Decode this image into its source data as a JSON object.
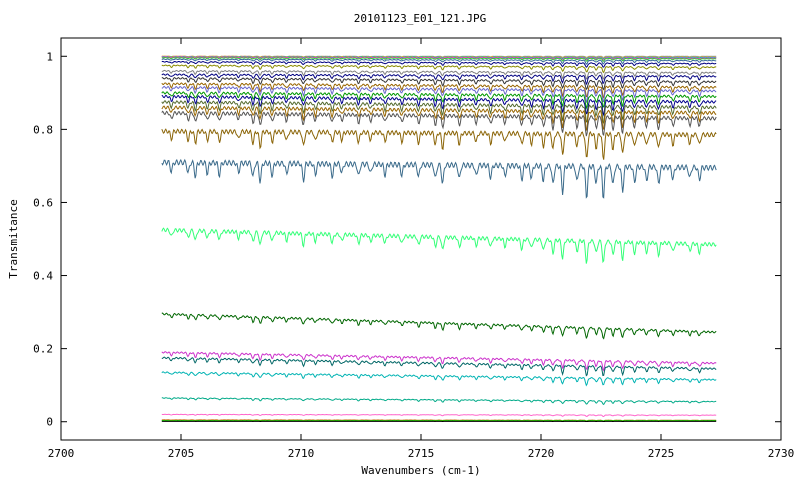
{
  "chart_data": {
    "type": "line",
    "title": "20101123_E01_121.JPG",
    "xlabel": "Wavenumbers (cm-1)",
    "ylabel": "Transmitance",
    "xlim": [
      2700,
      2730
    ],
    "ylim": [
      -0.05,
      1.05
    ],
    "x_ticks": [
      2700,
      2705,
      2710,
      2715,
      2720,
      2725,
      2730
    ],
    "y_ticks": [
      0,
      0.2,
      0.4,
      0.6,
      0.8,
      1
    ],
    "y_tick_labels": [
      "0",
      "0.2",
      "0.4",
      "0.6",
      "0.8",
      "1"
    ],
    "grid": false,
    "legend": "none",
    "x_range_data": [
      2704.2,
      2727.3
    ],
    "line_positions": [
      2704.6,
      2705.3,
      2705.6,
      2706.1,
      2706.6,
      2707.4,
      2708.0,
      2708.3,
      2708.8,
      2709.4,
      2710.1,
      2710.6,
      2711.3,
      2711.7,
      2712.4,
      2712.9,
      2713.5,
      2714.2,
      2714.9,
      2715.6,
      2715.9,
      2716.6,
      2717.3,
      2717.9,
      2718.5,
      2719.2,
      2719.6,
      2720.1,
      2720.5,
      2720.9,
      2721.5,
      2721.9,
      2722.3,
      2722.6,
      2723.0,
      2723.4,
      2723.9,
      2724.4,
      2724.9,
      2725.5,
      2726.2,
      2726.6
    ],
    "line_strengths": [
      0.3,
      0.35,
      0.45,
      0.35,
      0.4,
      0.3,
      0.45,
      0.6,
      0.4,
      0.35,
      0.55,
      0.35,
      0.4,
      0.3,
      0.4,
      0.3,
      0.35,
      0.35,
      0.4,
      0.45,
      0.6,
      0.45,
      0.35,
      0.4,
      0.35,
      0.45,
      0.4,
      0.5,
      0.6,
      0.85,
      0.5,
      1.0,
      0.55,
      1.0,
      0.6,
      0.8,
      0.5,
      0.45,
      0.55,
      0.4,
      0.35,
      0.4
    ],
    "series": [
      {
        "color": "#9aa6a6",
        "start": 1.0,
        "end": 1.0,
        "depth": 0.003
      },
      {
        "color": "#ff9900",
        "start": 1.0,
        "end": 0.998,
        "depth": 0.004
      },
      {
        "color": "#00c0c0",
        "start": 0.999,
        "end": 0.997,
        "depth": 0.005
      },
      {
        "color": "#ff33cc",
        "start": 0.998,
        "end": 0.995,
        "depth": 0.006
      },
      {
        "color": "#33cc33",
        "start": 0.996,
        "end": 0.993,
        "depth": 0.007
      },
      {
        "color": "#336699",
        "start": 0.992,
        "end": 0.988,
        "depth": 0.01
      },
      {
        "color": "#000080",
        "start": 0.985,
        "end": 0.98,
        "depth": 0.012
      },
      {
        "color": "#8b8b00",
        "start": 0.975,
        "end": 0.97,
        "depth": 0.015
      },
      {
        "color": "#808080",
        "start": 0.96,
        "end": 0.955,
        "depth": 0.018
      },
      {
        "color": "#000080",
        "start": 0.95,
        "end": 0.945,
        "depth": 0.022
      },
      {
        "color": "#333333",
        "start": 0.94,
        "end": 0.93,
        "depth": 0.025
      },
      {
        "color": "#996600",
        "start": 0.925,
        "end": 0.915,
        "depth": 0.03
      },
      {
        "color": "#6666cc",
        "start": 0.915,
        "end": 0.905,
        "depth": 0.032
      },
      {
        "color": "#009900",
        "start": 0.9,
        "end": 0.89,
        "depth": 0.035
      },
      {
        "color": "#00008b",
        "start": 0.89,
        "end": 0.875,
        "depth": 0.04
      },
      {
        "color": "#556b2f",
        "start": 0.875,
        "end": 0.86,
        "depth": 0.045
      },
      {
        "color": "#996600",
        "start": 0.86,
        "end": 0.845,
        "depth": 0.05
      },
      {
        "color": "#555555",
        "start": 0.845,
        "end": 0.83,
        "depth": 0.055
      },
      {
        "color": "#8b6508",
        "start": 0.795,
        "end": 0.785,
        "depth": 0.07
      },
      {
        "color": "#3a6a8a",
        "start": 0.71,
        "end": 0.695,
        "depth": 0.085
      },
      {
        "color": "#33ff77",
        "start": 0.525,
        "end": 0.485,
        "depth": 0.06
      },
      {
        "color": "#006600",
        "start": 0.295,
        "end": 0.245,
        "depth": 0.03
      },
      {
        "color": "#cc33cc",
        "start": 0.19,
        "end": 0.16,
        "depth": 0.025
      },
      {
        "color": "#006666",
        "start": 0.175,
        "end": 0.145,
        "depth": 0.025
      },
      {
        "color": "#00b3b3",
        "start": 0.135,
        "end": 0.115,
        "depth": 0.02
      },
      {
        "color": "#00aa88",
        "start": 0.065,
        "end": 0.055,
        "depth": 0.01
      },
      {
        "color": "#ff66cc",
        "start": 0.02,
        "end": 0.018,
        "depth": 0.004
      },
      {
        "color": "#cc6600",
        "start": 0.005,
        "end": 0.004,
        "depth": 0.002
      },
      {
        "color": "#00cc00",
        "start": 0.003,
        "end": 0.003,
        "depth": 0.001
      },
      {
        "color": "#000000",
        "start": 0.001,
        "end": 0.001,
        "depth": 0.0005
      }
    ]
  }
}
